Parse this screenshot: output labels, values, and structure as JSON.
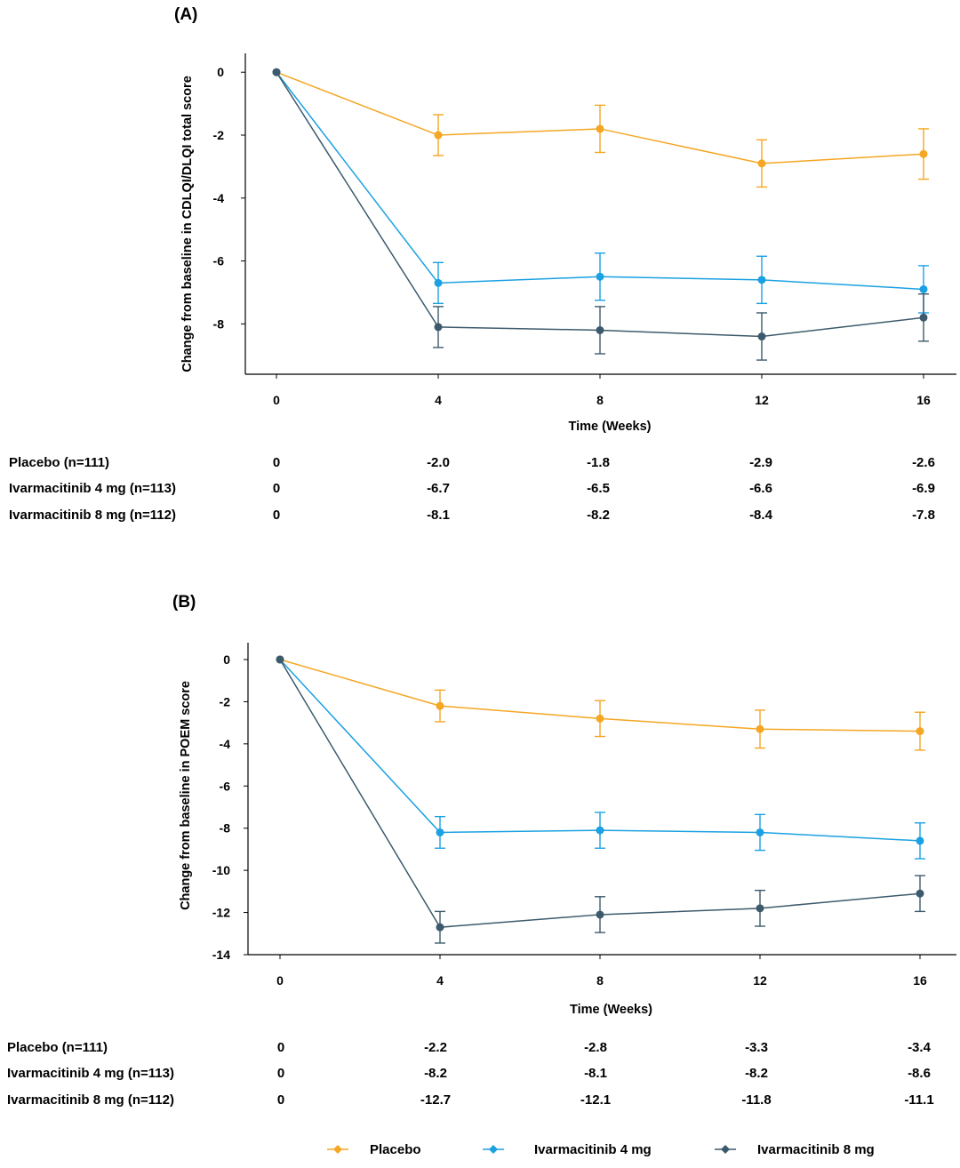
{
  "chart_data": [
    {
      "type": "line",
      "panel_label": "(A)",
      "xlabel": "Time (Weeks)",
      "ylabel": "Change from baseline in CDLQI/DLQI total score",
      "x": [
        0,
        4,
        8,
        12,
        16
      ],
      "x_ticks": [
        "0",
        "4",
        "8",
        "12",
        "16"
      ],
      "y_ticks": [
        "0",
        "-2",
        "-4",
        "-6",
        "-8"
      ],
      "ylim": [
        -9.6,
        0.6
      ],
      "series": [
        {
          "name": "Placebo",
          "color": "#F5A623",
          "values": [
            0,
            -2.0,
            -1.8,
            -2.9,
            -2.6
          ],
          "err_low": [
            0,
            -2.65,
            -2.55,
            -3.65,
            -3.4
          ],
          "err_high": [
            0,
            -1.35,
            -1.05,
            -2.15,
            -1.8
          ]
        },
        {
          "name": "Ivarmacitinib 4 mg",
          "color": "#1BA1E2",
          "values": [
            0,
            -6.7,
            -6.5,
            -6.6,
            -6.9
          ],
          "err_low": [
            0,
            -7.35,
            -7.25,
            -7.35,
            -7.65
          ],
          "err_high": [
            0,
            -6.05,
            -5.75,
            -5.85,
            -6.15
          ]
        },
        {
          "name": "Ivarmacitinib 8 mg",
          "color": "#3D5A6C",
          "values": [
            0,
            -8.1,
            -8.2,
            -8.4,
            -7.8
          ],
          "err_low": [
            0,
            -8.75,
            -8.95,
            -9.15,
            -8.55
          ],
          "err_high": [
            0,
            -7.45,
            -7.45,
            -7.65,
            -7.05
          ]
        }
      ],
      "table": {
        "rows": [
          {
            "label": "Placebo (n=111)",
            "values": [
              "0",
              "-2.0",
              "-1.8",
              "-2.9",
              "-2.6"
            ]
          },
          {
            "label": "Ivarmacitinib 4 mg (n=113)",
            "values": [
              "0",
              "-6.7",
              "-6.5",
              "-6.6",
              "-6.9"
            ]
          },
          {
            "label": "Ivarmacitinib 8 mg (n=112)",
            "values": [
              "0",
              "-8.1",
              "-8.2",
              "-8.4",
              "-7.8"
            ]
          }
        ]
      }
    },
    {
      "type": "line",
      "panel_label": "(B)",
      "xlabel": "Time (Weeks)",
      "ylabel": "Change from baseline in POEM score",
      "x": [
        0,
        4,
        8,
        12,
        16
      ],
      "x_ticks": [
        "0",
        "4",
        "8",
        "12",
        "16"
      ],
      "y_ticks": [
        "0",
        "-2",
        "-4",
        "-6",
        "-8",
        "-10",
        "-12",
        "-14"
      ],
      "ylim": [
        -14,
        0.8
      ],
      "series": [
        {
          "name": "Placebo",
          "color": "#F5A623",
          "values": [
            0,
            -2.2,
            -2.8,
            -3.3,
            -3.4
          ],
          "err_low": [
            0,
            -2.95,
            -3.65,
            -4.2,
            -4.3
          ],
          "err_high": [
            0,
            -1.45,
            -1.95,
            -2.4,
            -2.5
          ]
        },
        {
          "name": "Ivarmacitinib 4 mg",
          "color": "#1BA1E2",
          "values": [
            0,
            -8.2,
            -8.1,
            -8.2,
            -8.6
          ],
          "err_low": [
            0,
            -8.95,
            -8.95,
            -9.05,
            -9.45
          ],
          "err_high": [
            0,
            -7.45,
            -7.25,
            -7.35,
            -7.75
          ]
        },
        {
          "name": "Ivarmacitinib 8 mg",
          "color": "#3D5A6C",
          "values": [
            0,
            -12.7,
            -12.1,
            -11.8,
            -11.1
          ],
          "err_low": [
            0,
            -13.45,
            -12.95,
            -12.65,
            -11.95
          ],
          "err_high": [
            0,
            -11.95,
            -11.25,
            -10.95,
            -10.25
          ]
        }
      ],
      "table": {
        "rows": [
          {
            "label": "Placebo (n=111)",
            "values": [
              "0",
              "-2.2",
              "-2.8",
              "-3.3",
              "-3.4"
            ]
          },
          {
            "label": "Ivarmacitinib 4 mg (n=113)",
            "values": [
              "0",
              "-8.2",
              "-8.1",
              "-8.2",
              "-8.6"
            ]
          },
          {
            "label": "Ivarmacitinib 8 mg (n=112)",
            "values": [
              "0",
              "-12.7",
              "-12.1",
              "-11.8",
              "-11.1"
            ]
          }
        ]
      }
    }
  ],
  "legend": [
    {
      "name": "Placebo",
      "color": "#F5A623"
    },
    {
      "name": "Ivarmacitinib 4 mg",
      "color": "#1BA1E2"
    },
    {
      "name": "Ivarmacitinib 8 mg",
      "color": "#3D5A6C"
    }
  ]
}
